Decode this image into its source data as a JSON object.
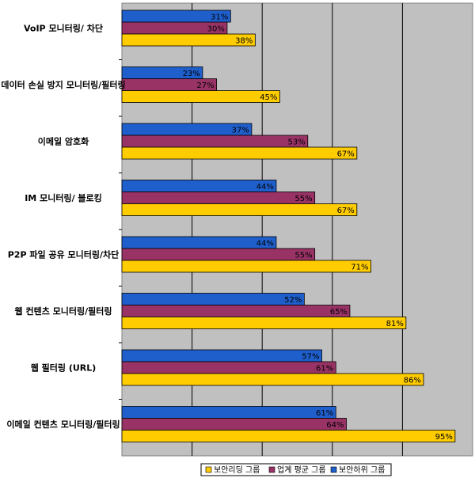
{
  "chart_data": {
    "type": "bar",
    "orientation": "horizontal",
    "title": "",
    "xlabel": "",
    "ylabel": "",
    "xlim": [
      0,
      100
    ],
    "grid": true,
    "legend_position": "bottom",
    "categories": [
      "VoIP 모니터링/ 차단",
      "데이터 손실 방지 모니터링/필터링",
      "이메일 암호화",
      "IM 모니터링/ 블로킹",
      "P2P 파일 공유 모니터링/차단",
      "웹 컨텐츠 모니터링/필터링",
      "웹 필터링 (URL)",
      "이메일 컨텐츠 모니터링/필터링"
    ],
    "series": [
      {
        "name": "보안하위 그룹",
        "color": "#1f5fcc",
        "values": [
          31,
          23,
          37,
          44,
          44,
          52,
          57,
          61
        ]
      },
      {
        "name": "업계 평균 그룹",
        "color": "#993366",
        "values": [
          30,
          27,
          53,
          55,
          55,
          65,
          61,
          64
        ]
      },
      {
        "name": "보안리딩 그룹",
        "color": "#ffcc00",
        "values": [
          38,
          45,
          67,
          67,
          71,
          81,
          86,
          95
        ]
      }
    ],
    "legend_order": [
      "보안리딩 그룹",
      "업계 평균 그룹",
      "보안하위 그룹"
    ],
    "plot_background": "#c0c0c0"
  }
}
